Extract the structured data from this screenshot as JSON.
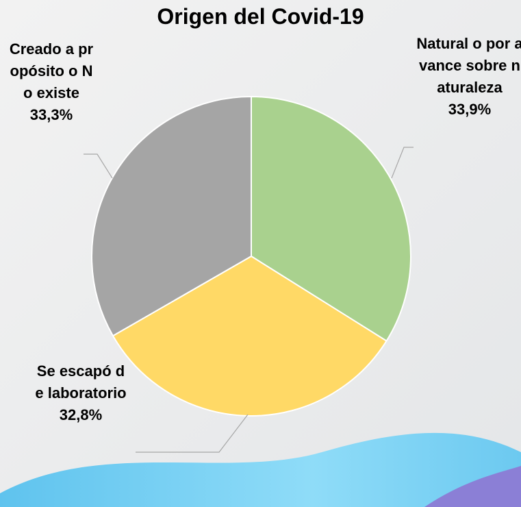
{
  "chart_data": {
    "type": "pie",
    "title": "Origen del Covid-19",
    "categories": [
      "Natural o por avance sobre naturaleza",
      "Se escapó de laboratorio",
      "Creado a propósito o No existe"
    ],
    "values": [
      33.9,
      32.8,
      33.3
    ],
    "value_labels": [
      "33,9%",
      "32,8%",
      "33,3%"
    ],
    "colors": [
      "#a9d18e",
      "#ffd966",
      "#a5a5a5"
    ]
  }
}
